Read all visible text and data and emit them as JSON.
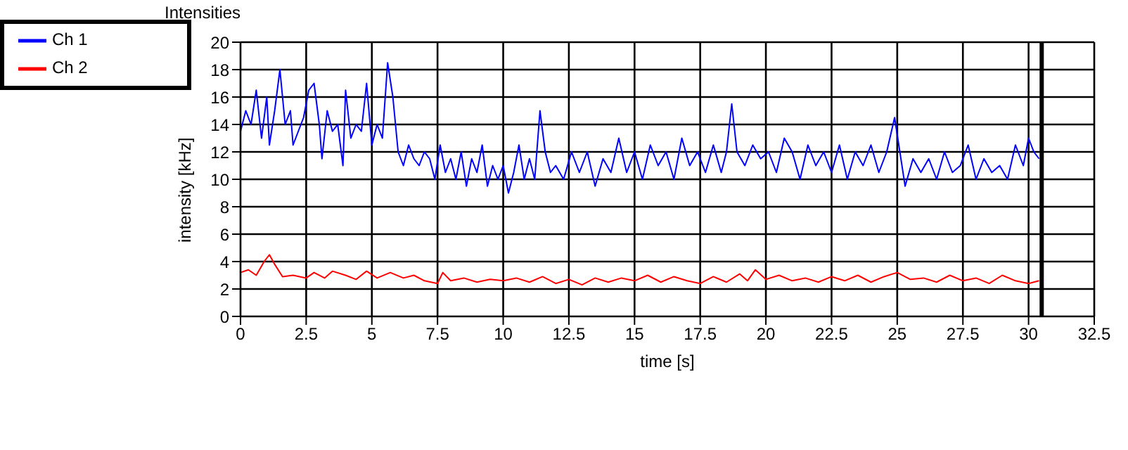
{
  "chart_data": {
    "type": "line",
    "title": "Intensities",
    "xlabel": "time [s]",
    "ylabel": "intensity [kHz]",
    "xlim": [
      0,
      32.5
    ],
    "xticks": [
      0,
      2.5,
      5,
      7.5,
      10,
      12.5,
      15,
      17.5,
      20,
      22.5,
      25,
      27.5,
      30,
      32.5
    ],
    "ylim": [
      0,
      20
    ],
    "yticks": [
      0,
      2,
      4,
      6,
      8,
      10,
      12,
      14,
      16,
      18,
      20
    ],
    "grid": true,
    "legend": "top left",
    "ref_lines": [
      {
        "axis": "x",
        "value": 30.5,
        "color": "#000000"
      }
    ],
    "series": [
      {
        "name": "Ch 1",
        "color": "#0000ff",
        "x": [
          0,
          0.2,
          0.4,
          0.6,
          0.8,
          1.0,
          1.1,
          1.3,
          1.5,
          1.7,
          1.9,
          2.0,
          2.2,
          2.4,
          2.6,
          2.8,
          3.0,
          3.1,
          3.3,
          3.5,
          3.7,
          3.9,
          4.0,
          4.2,
          4.4,
          4.6,
          4.8,
          5.0,
          5.2,
          5.4,
          5.6,
          5.8,
          6.0,
          6.2,
          6.4,
          6.6,
          6.8,
          7.0,
          7.2,
          7.4,
          7.6,
          7.8,
          8.0,
          8.2,
          8.4,
          8.6,
          8.8,
          9.0,
          9.2,
          9.4,
          9.6,
          9.8,
          10.0,
          10.2,
          10.4,
          10.6,
          10.8,
          11.0,
          11.2,
          11.4,
          11.6,
          11.8,
          12.0,
          12.3,
          12.6,
          12.9,
          13.2,
          13.5,
          13.8,
          14.1,
          14.4,
          14.7,
          15.0,
          15.3,
          15.6,
          15.9,
          16.2,
          16.5,
          16.8,
          17.1,
          17.4,
          17.7,
          18.0,
          18.3,
          18.5,
          18.7,
          18.9,
          19.2,
          19.5,
          19.8,
          20.1,
          20.4,
          20.7,
          21.0,
          21.3,
          21.6,
          21.9,
          22.2,
          22.5,
          22.8,
          23.1,
          23.4,
          23.7,
          24.0,
          24.3,
          24.6,
          24.9,
          25.1,
          25.3,
          25.6,
          25.9,
          26.2,
          26.5,
          26.8,
          27.1,
          27.4,
          27.7,
          28.0,
          28.3,
          28.6,
          28.9,
          29.2,
          29.5,
          29.8,
          30.0,
          30.2,
          30.4
        ],
        "values": [
          13.5,
          15,
          14,
          16.5,
          13,
          16,
          12.5,
          15,
          18,
          14,
          15,
          12.5,
          13.5,
          14.5,
          16.5,
          17,
          14,
          11.5,
          15,
          13.5,
          14,
          11,
          16.5,
          13,
          14,
          13.5,
          17,
          12.5,
          14,
          13,
          18.5,
          16,
          12,
          11,
          12.5,
          11.5,
          11,
          12,
          11.5,
          10,
          12.5,
          10.5,
          11.5,
          10,
          12,
          9.5,
          11.5,
          10.5,
          12.5,
          9.5,
          11,
          10,
          11,
          9,
          10.5,
          12.5,
          10,
          11.5,
          10,
          15,
          12,
          10.5,
          11,
          10,
          12,
          10.5,
          12,
          9.5,
          11.5,
          10.5,
          13,
          10.5,
          12,
          10,
          12.5,
          11,
          12,
          10,
          13,
          11,
          12,
          10.5,
          12.5,
          10.5,
          12,
          15.5,
          12,
          11,
          12.5,
          11.5,
          12,
          10.5,
          13,
          12,
          10,
          12.5,
          11,
          12,
          10.5,
          12.5,
          10,
          12,
          11,
          12.5,
          10.5,
          12,
          14.5,
          12,
          9.5,
          11.5,
          10.5,
          11.5,
          10,
          12,
          10.5,
          11,
          12.5,
          10,
          11.5,
          10.5,
          11,
          10,
          12.5,
          11,
          13,
          12,
          11.5
        ]
      },
      {
        "name": "Ch 2",
        "color": "#ff0000",
        "x": [
          0,
          0.3,
          0.6,
          0.9,
          1.1,
          1.3,
          1.6,
          2.0,
          2.5,
          2.8,
          3.2,
          3.5,
          4.0,
          4.4,
          4.8,
          5.2,
          5.7,
          6.2,
          6.6,
          7.0,
          7.5,
          7.7,
          8.0,
          8.5,
          9.0,
          9.5,
          10.0,
          10.5,
          11.0,
          11.5,
          12.0,
          12.5,
          13.0,
          13.5,
          14.0,
          14.5,
          15.0,
          15.5,
          16.0,
          16.5,
          17.0,
          17.5,
          18.0,
          18.5,
          19.0,
          19.3,
          19.6,
          20.0,
          20.5,
          21.0,
          21.5,
          22.0,
          22.5,
          23.0,
          23.5,
          24.0,
          24.5,
          25.0,
          25.5,
          26.0,
          26.5,
          27.0,
          27.5,
          28.0,
          28.5,
          29.0,
          29.5,
          30.0,
          30.4
        ],
        "values": [
          3.2,
          3.4,
          3.0,
          4.0,
          4.5,
          3.8,
          2.9,
          3.0,
          2.8,
          3.2,
          2.8,
          3.3,
          3.0,
          2.7,
          3.3,
          2.8,
          3.2,
          2.8,
          3.0,
          2.6,
          2.4,
          3.2,
          2.6,
          2.8,
          2.5,
          2.7,
          2.6,
          2.8,
          2.5,
          2.9,
          2.4,
          2.7,
          2.3,
          2.8,
          2.5,
          2.8,
          2.6,
          3.0,
          2.5,
          2.9,
          2.6,
          2.4,
          2.9,
          2.5,
          3.1,
          2.6,
          3.4,
          2.7,
          3.0,
          2.6,
          2.8,
          2.5,
          2.9,
          2.6,
          3.0,
          2.5,
          2.9,
          3.2,
          2.7,
          2.8,
          2.5,
          3.0,
          2.6,
          2.8,
          2.4,
          3.0,
          2.6,
          2.4,
          2.6
        ]
      }
    ]
  }
}
